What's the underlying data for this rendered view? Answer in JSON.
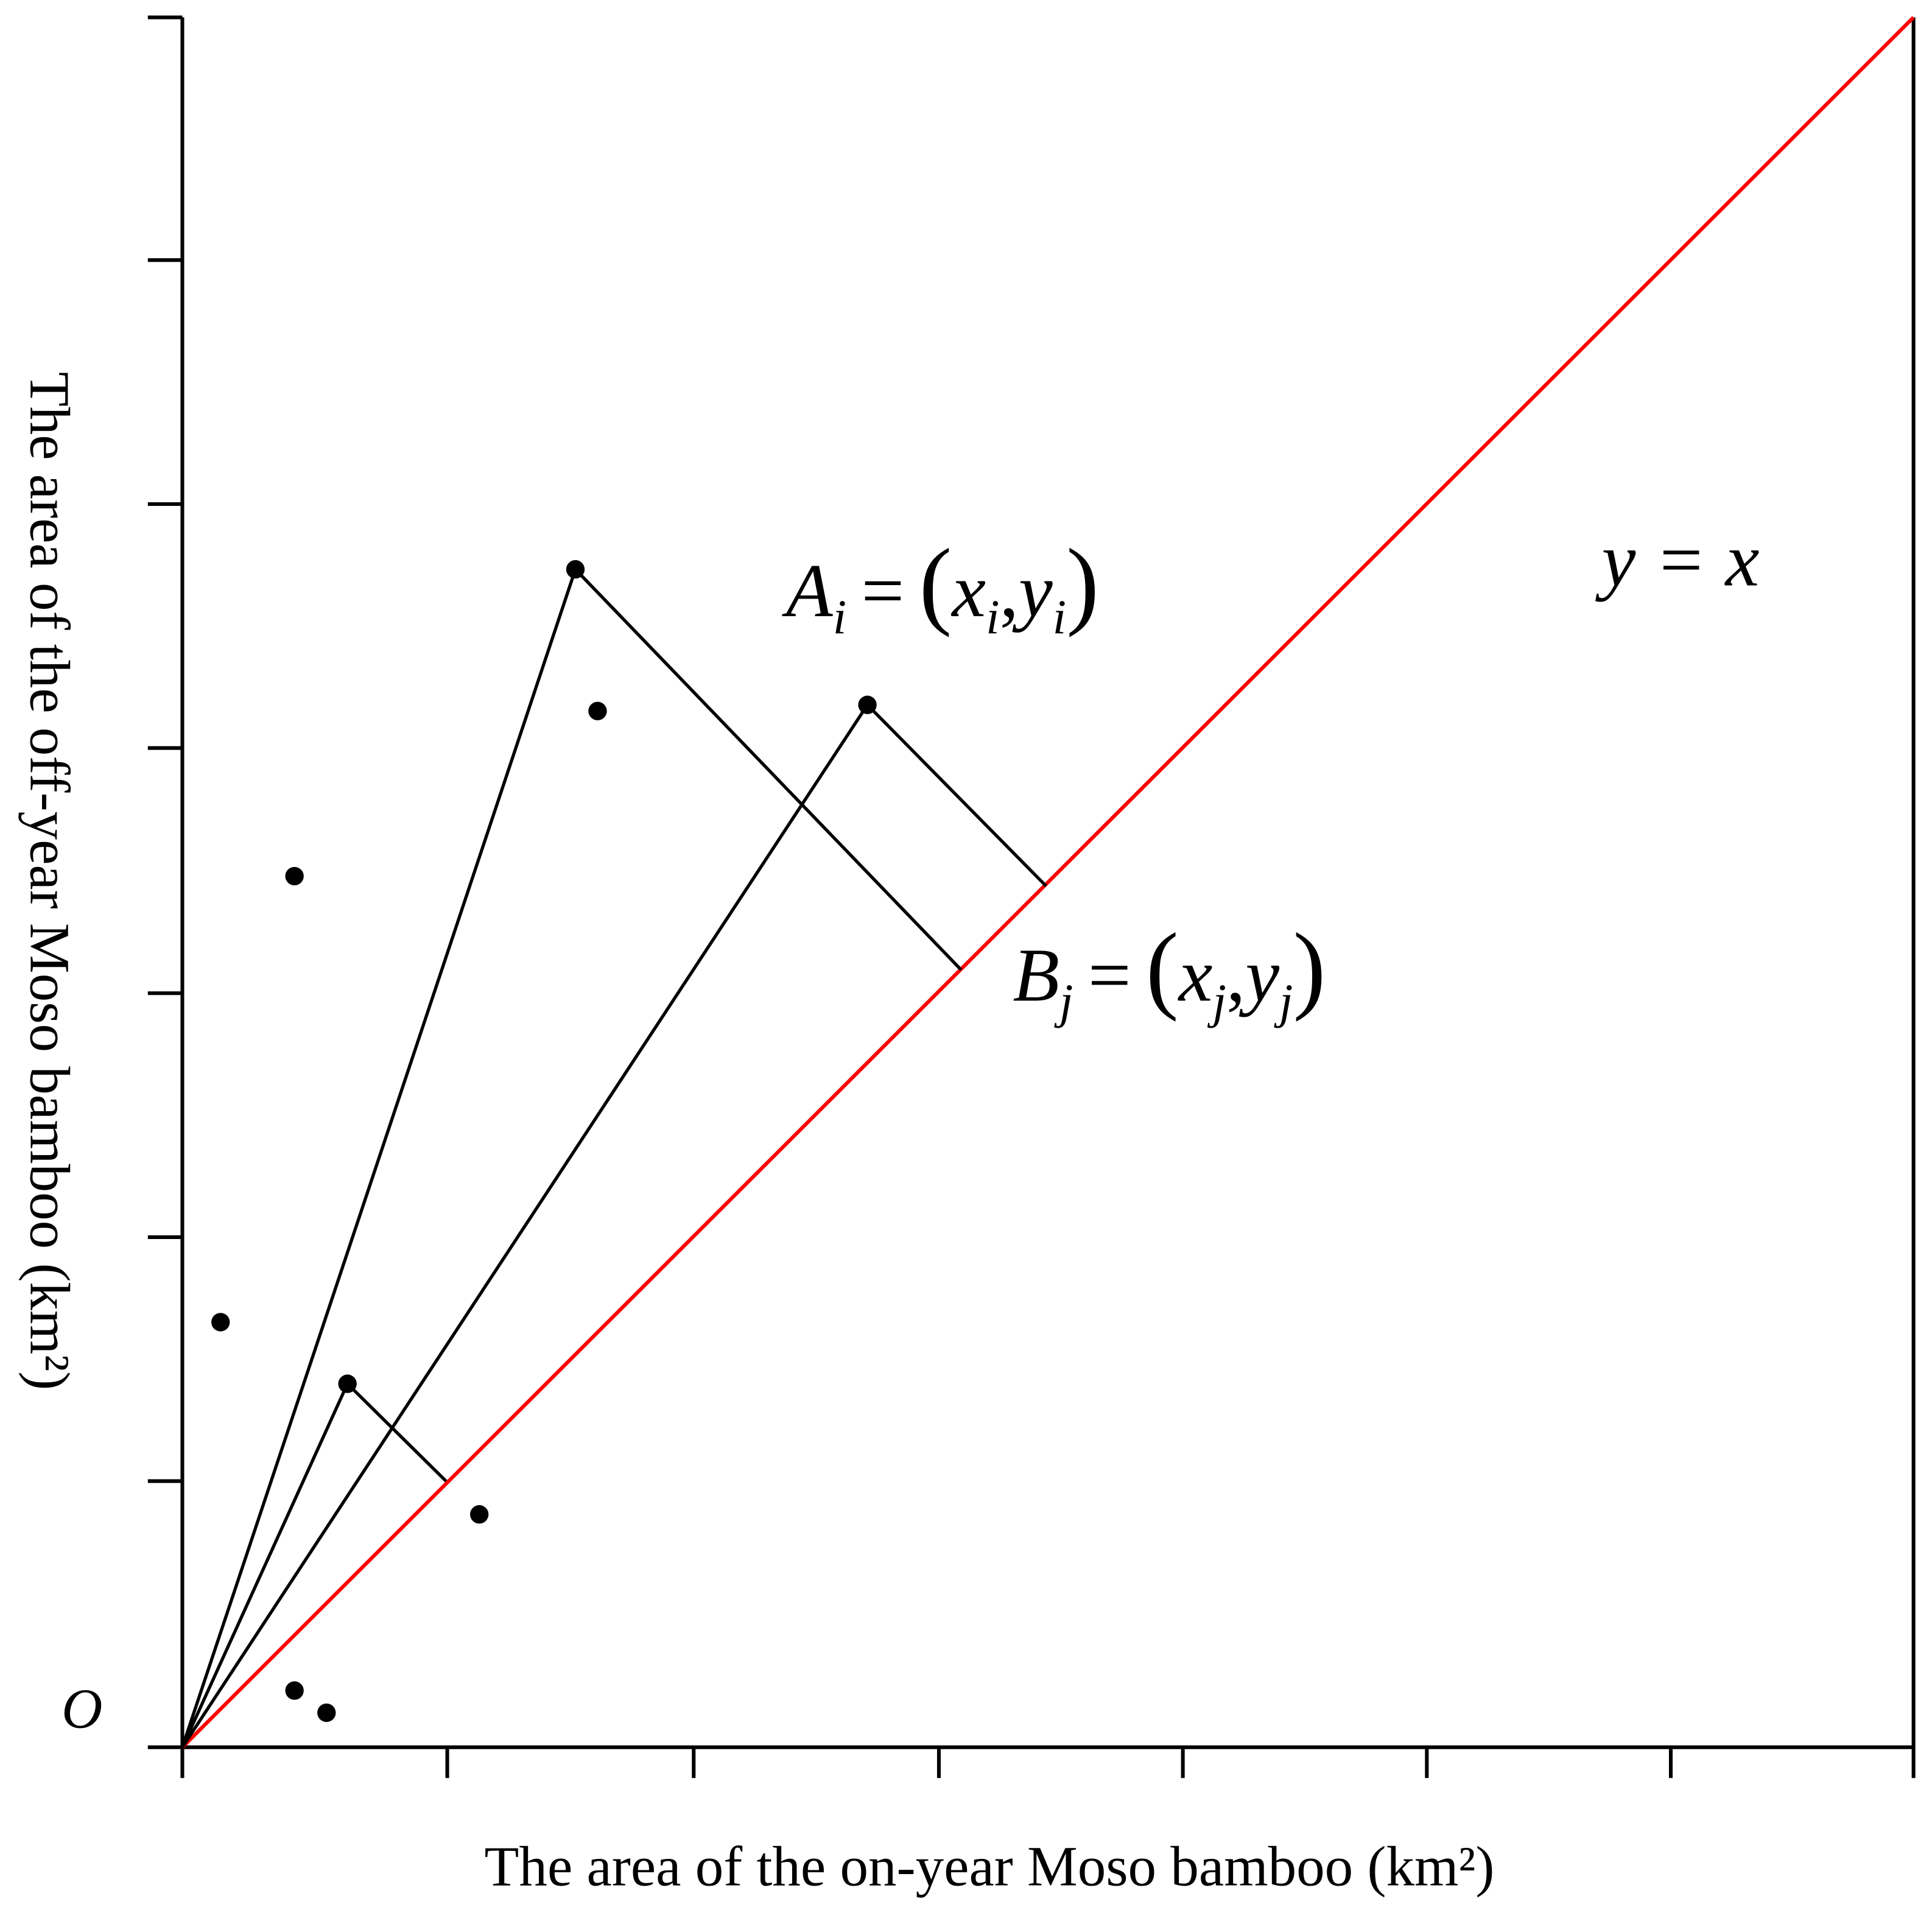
{
  "axes": {
    "x_label": "The area of the on-year Moso bamboo (km²)",
    "y_label": "The area of the off-year Moso bamboo (km²)",
    "origin": "O"
  },
  "annotations": {
    "point_a": [
      "A",
      "i",
      "=",
      "(",
      "x",
      "i",
      ",",
      "y",
      "i",
      ")"
    ],
    "point_b": [
      "B",
      "j",
      "=",
      "(",
      "x",
      "j",
      ",",
      "y",
      "j",
      ")"
    ],
    "line": "y = x"
  }
}
